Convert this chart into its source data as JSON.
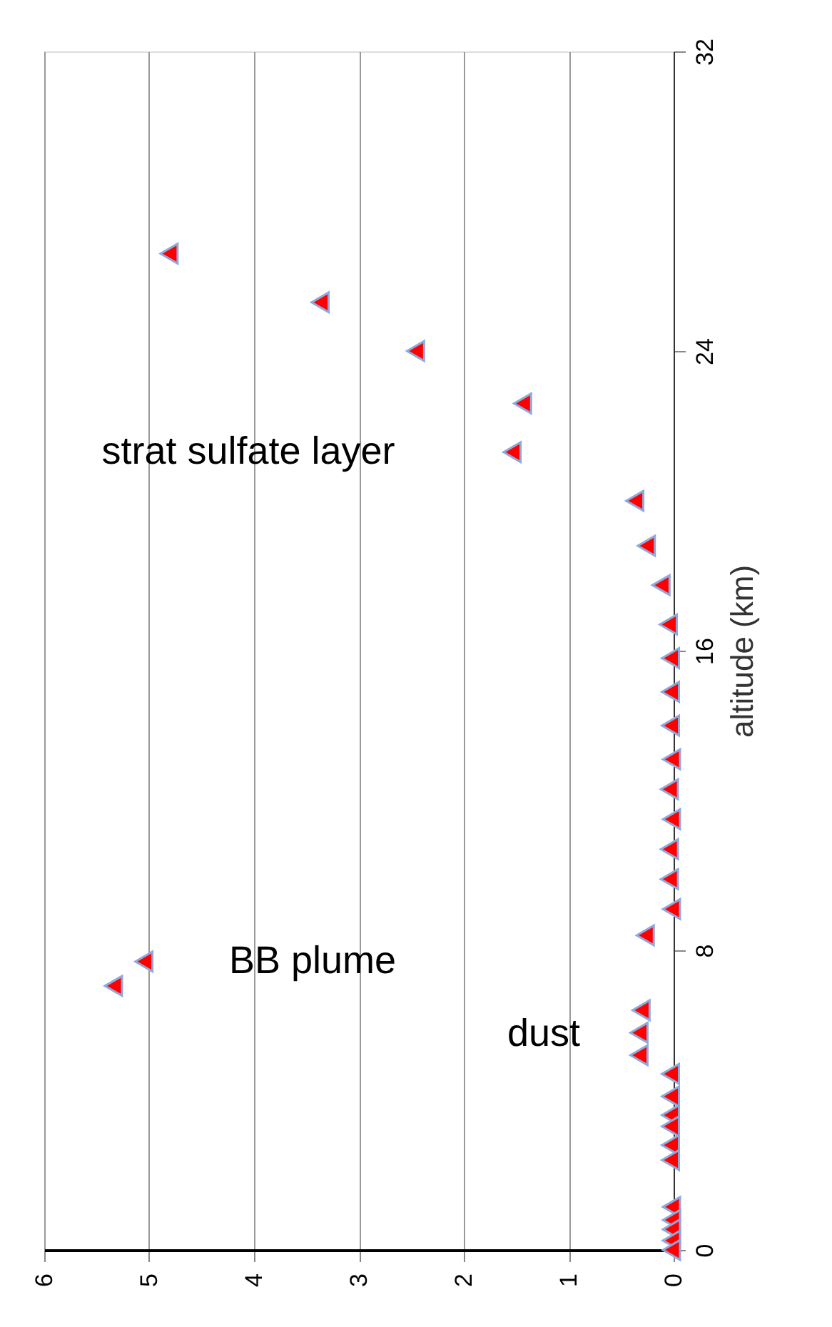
{
  "chart_data": {
    "type": "scatter",
    "ylabel": "altitude (km)",
    "x": [
      4.81,
      3.37,
      2.46,
      1.44,
      1.54,
      0.37,
      0.26,
      0.12,
      0.05,
      0.03,
      0.03,
      0.03,
      0.02,
      0.04,
      0.02,
      0.04,
      0.04,
      0.02,
      0.27,
      5.05,
      5.34,
      0.31,
      0.33,
      0.33,
      0.03,
      0.03,
      0.03,
      0.03,
      0.03,
      0.03,
      0.02,
      0.02,
      0.02,
      0.02,
      0.02
    ],
    "series": [
      {
        "color": "#ff0000",
        "values": [
          26.6,
          25.3,
          24.0,
          22.6,
          21.3,
          20.0,
          18.8,
          17.75,
          16.7,
          15.8,
          14.9,
          14.0,
          13.1,
          12.3,
          11.5,
          10.7,
          9.9,
          9.1,
          8.4,
          7.7,
          7.05,
          6.4,
          5.8,
          5.2,
          4.7,
          4.1,
          3.6,
          3.3,
          2.8,
          2.4,
          1.15,
          0.8,
          0.55,
          0.25,
          0.0
        ]
      }
    ],
    "xlim": [
      6,
      0
    ],
    "xticks": [
      0,
      1,
      2,
      3,
      4,
      5,
      6
    ],
    "ylim": [
      0,
      32
    ],
    "yticks": [
      0,
      8,
      16,
      24,
      32
    ],
    "grid": "x",
    "marker": "triangle",
    "annotations": [
      "strat sulfate layer",
      "BB plume",
      "dust"
    ]
  }
}
